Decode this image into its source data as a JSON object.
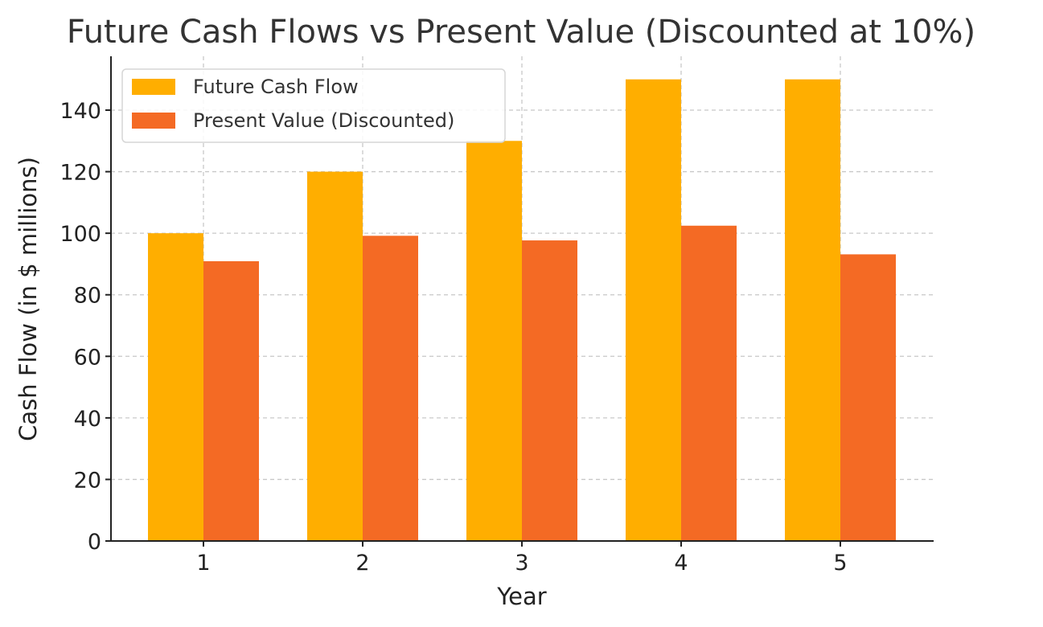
{
  "chart_data": {
    "type": "bar",
    "title": "Future Cash Flows vs Present Value (Discounted at 10%)",
    "xlabel": "Year",
    "ylabel": "Cash Flow (in $ millions)",
    "categories": [
      "1",
      "2",
      "3",
      "4",
      "5"
    ],
    "series": [
      {
        "name": "Future Cash Flow",
        "color": "#FFAE00",
        "values": [
          100,
          120,
          130,
          150,
          150
        ]
      },
      {
        "name": "Present Value (Discounted)",
        "color": "#F46A24",
        "values": [
          90.91,
          99.17,
          97.67,
          102.45,
          93.14
        ]
      }
    ],
    "ylim": [
      0,
      157.5
    ],
    "yticks": [
      0,
      20,
      40,
      60,
      80,
      100,
      120,
      140
    ],
    "grid": true,
    "legend_position": "upper-left"
  }
}
